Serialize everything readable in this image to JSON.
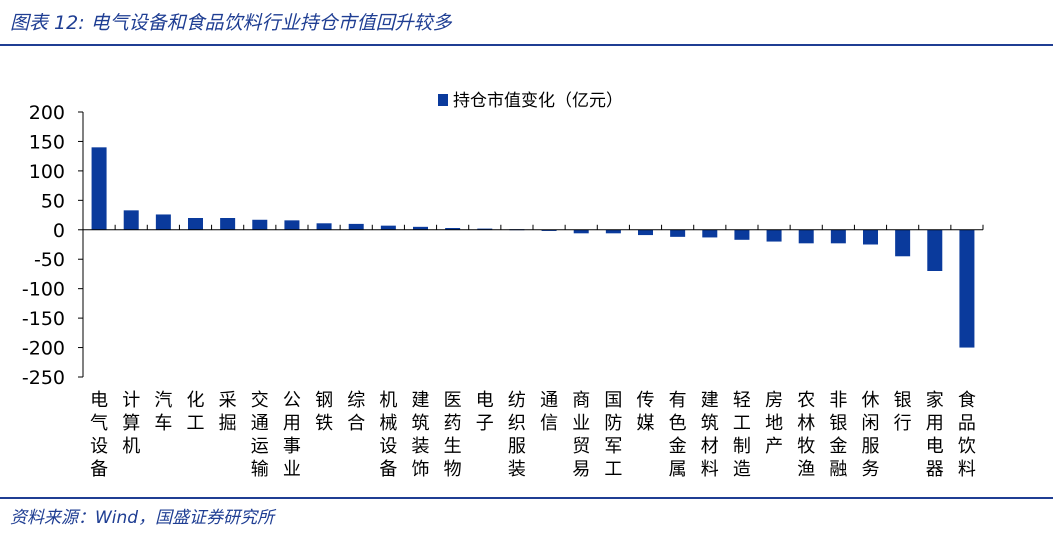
{
  "figure_title": "图表 12:  电气设备和食品饮料行业持仓市值回升较多",
  "source_note": "资料来源：Wind，国盛证券研究所",
  "colors": {
    "accent": "#1f3e93",
    "bar": "#0a3a9c"
  },
  "chart_data": {
    "type": "bar",
    "categories": [
      "电气设备",
      "计算机",
      "汽车",
      "化工",
      "采掘",
      "交通运输",
      "公用事业",
      "钢铁",
      "综合",
      "机械设备",
      "建筑装饰",
      "医药生物",
      "电子",
      "纺织服装",
      "通信",
      "商业贸易",
      "国防军工",
      "传媒",
      "有色金属",
      "建筑材料",
      "轻工制造",
      "房地产",
      "农林牧渔",
      "非银金融",
      "休闲服务",
      "银行",
      "家用电器",
      "食品饮料"
    ],
    "series": [
      {
        "name": "持仓市值变化（亿元）",
        "values": [
          140,
          33,
          26,
          20,
          20,
          17,
          16,
          11,
          10,
          7,
          5,
          3,
          2,
          1,
          -2,
          -6,
          -6,
          -9,
          -12,
          -13,
          -17,
          -20,
          -23,
          -23,
          -25,
          -45,
          -70,
          -200
        ]
      }
    ],
    "yticks": [
      "200",
      "150",
      "100",
      "50",
      "0",
      "-50",
      "-100",
      "-150",
      "-200",
      "-250"
    ],
    "ylim": [
      -250,
      200
    ],
    "legend_position": "top-center",
    "grid": false
  }
}
